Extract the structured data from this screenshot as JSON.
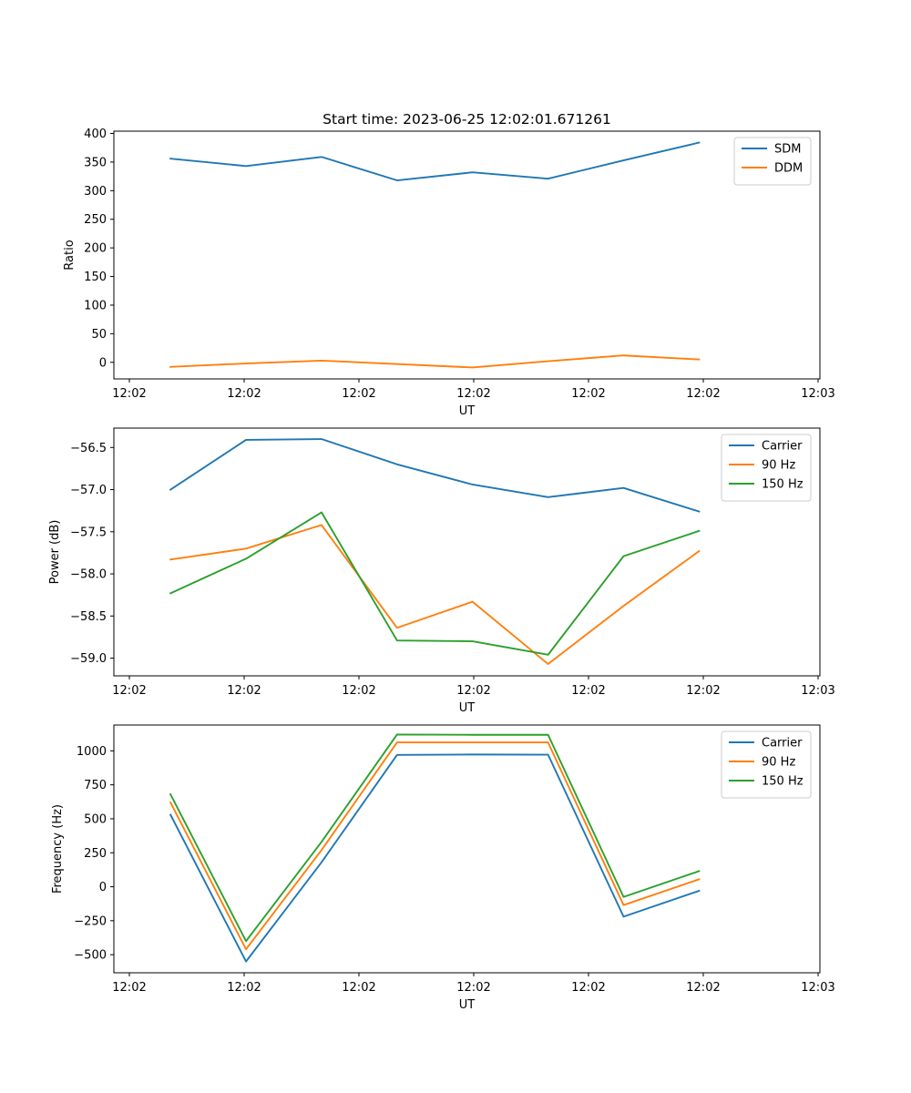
{
  "figure": {
    "title": "Start time: 2023-06-25 12:02:01.671261"
  },
  "chart_data": [
    {
      "type": "line",
      "title": "Start time: 2023-06-25 12:02:01.671261",
      "xlabel": "UT",
      "ylabel": "Ratio",
      "x_tick_labels": [
        "12:02",
        "12:02",
        "12:02",
        "12:02",
        "12:02",
        "12:02",
        "12:03"
      ],
      "y_ticks": [
        0,
        50,
        100,
        150,
        200,
        250,
        300,
        350,
        400
      ],
      "ylim": [
        -29,
        404
      ],
      "xlim": [
        -0.75,
        8.6
      ],
      "x": [
        0,
        1,
        2,
        3,
        4,
        5,
        6,
        7
      ],
      "legend_position": "upper right",
      "grid": false,
      "series": [
        {
          "name": "SDM",
          "color": "#1f77b4",
          "values": [
            356,
            343,
            359,
            318,
            332,
            321,
            353,
            384
          ]
        },
        {
          "name": "DDM",
          "color": "#ff7f0e",
          "values": [
            -8,
            -2,
            3,
            -3,
            -9,
            2,
            12,
            5
          ]
        }
      ]
    },
    {
      "type": "line",
      "title": "",
      "xlabel": "UT",
      "ylabel": "Power (dB)",
      "x_tick_labels": [
        "12:02",
        "12:02",
        "12:02",
        "12:02",
        "12:02",
        "12:02",
        "12:03"
      ],
      "y_ticks": [
        -59.0,
        -58.5,
        -58.0,
        -57.5,
        -57.0,
        -56.5
      ],
      "ylim": [
        -59.21,
        -56.27
      ],
      "xlim": [
        -0.75,
        8.6
      ],
      "x": [
        0,
        1,
        2,
        3,
        4,
        5,
        6,
        7
      ],
      "legend_position": "upper right",
      "grid": false,
      "series": [
        {
          "name": "Carrier",
          "color": "#1f77b4",
          "values": [
            -57.0,
            -56.41,
            -56.4,
            -56.7,
            -56.94,
            -57.09,
            -56.98,
            -57.26
          ]
        },
        {
          "name": "90 Hz",
          "color": "#ff7f0e",
          "values": [
            -57.83,
            -57.7,
            -57.42,
            -58.64,
            -58.33,
            -59.07,
            -58.38,
            -57.73
          ]
        },
        {
          "name": "150 Hz",
          "color": "#2ca02c",
          "values": [
            -58.23,
            -57.82,
            -57.27,
            -58.79,
            -58.8,
            -58.96,
            -57.79,
            -57.49
          ]
        }
      ]
    },
    {
      "type": "line",
      "title": "",
      "xlabel": "UT",
      "ylabel": "Frequency (Hz)",
      "x_tick_labels": [
        "12:02",
        "12:02",
        "12:02",
        "12:02",
        "12:02",
        "12:02",
        "12:03"
      ],
      "y_ticks": [
        -500,
        -250,
        0,
        250,
        500,
        750,
        1000
      ],
      "ylim": [
        -633,
        1190
      ],
      "xlim": [
        -0.75,
        8.6
      ],
      "x": [
        0,
        1,
        2,
        3,
        4,
        5,
        6,
        7
      ],
      "legend_position": "upper right",
      "grid": false,
      "series": [
        {
          "name": "Carrier",
          "color": "#1f77b4",
          "values": [
            530,
            -550,
            180,
            970,
            973,
            972,
            -220,
            -30
          ]
        },
        {
          "name": "90 Hz",
          "color": "#ff7f0e",
          "values": [
            620,
            -460,
            270,
            1062,
            1062,
            1062,
            -135,
            55
          ]
        },
        {
          "name": "150 Hz",
          "color": "#2ca02c",
          "values": [
            680,
            -400,
            330,
            1120,
            1118,
            1118,
            -75,
            115
          ]
        }
      ]
    }
  ]
}
